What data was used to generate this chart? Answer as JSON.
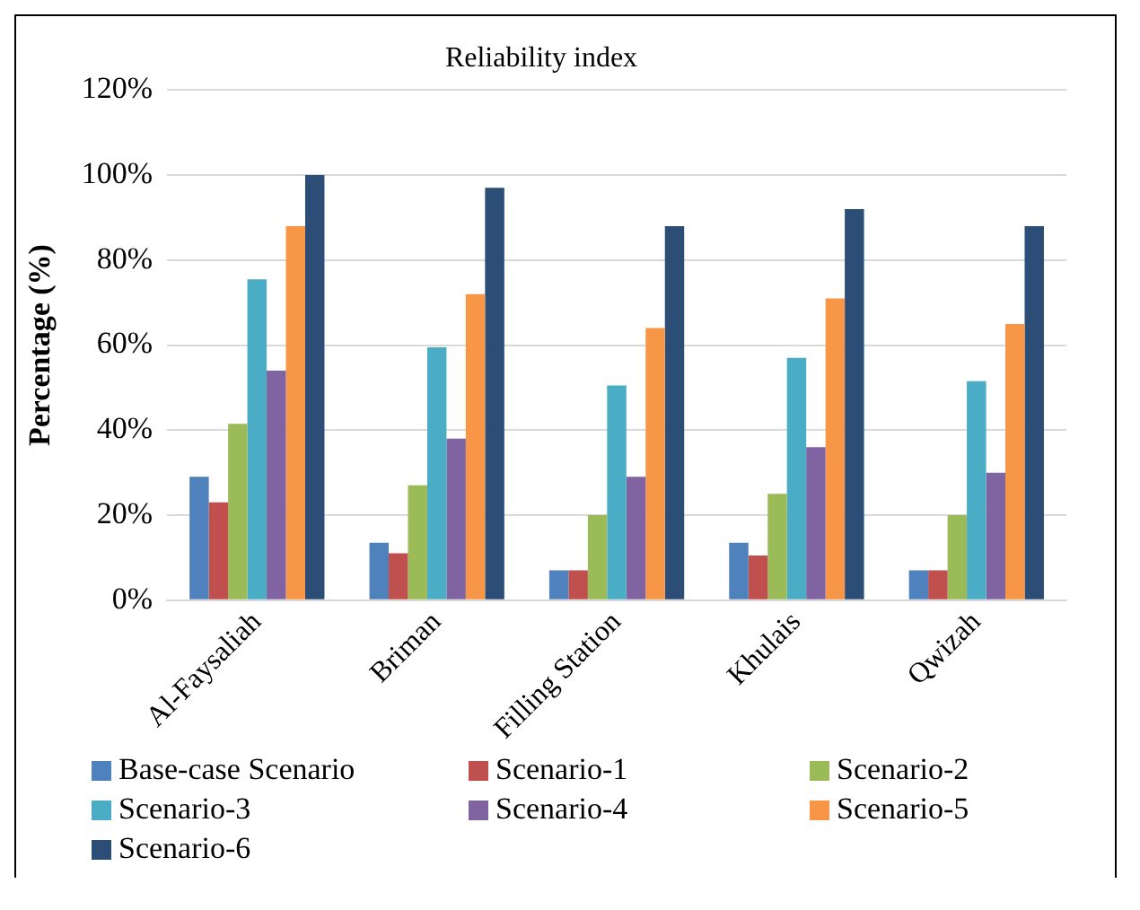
{
  "chart_data": {
    "type": "bar",
    "title": "Reliability index",
    "ylabel": "Percentage (%)",
    "categories": [
      "Al-Faysaliah",
      "Briman",
      "Filling Station",
      "Khulais",
      "Qwizah"
    ],
    "series": [
      {
        "name": "Base-case Scenario",
        "color": "#4f81bd",
        "values": [
          29,
          13.5,
          7,
          13.5,
          7
        ]
      },
      {
        "name": "Scenario-1",
        "color": "#c0504d",
        "values": [
          23,
          11,
          7,
          10.5,
          7
        ]
      },
      {
        "name": "Scenario-2",
        "color": "#9bbb59",
        "values": [
          41.5,
          27,
          20,
          25,
          20
        ]
      },
      {
        "name": "Scenario-3",
        "color": "#4bacc6",
        "values": [
          75.5,
          59.5,
          50.5,
          57,
          51.5
        ]
      },
      {
        "name": "Scenario-4",
        "color": "#8064a2",
        "values": [
          54,
          38,
          29,
          36,
          30
        ]
      },
      {
        "name": "Scenario-5",
        "color": "#f79646",
        "values": [
          88,
          72,
          64,
          71,
          65
        ]
      },
      {
        "name": "Scenario-6",
        "color": "#2c4d75",
        "values": [
          100,
          97,
          88,
          92,
          88
        ]
      }
    ],
    "ylim": [
      0,
      120
    ],
    "yticks": [
      {
        "value": 0,
        "label": "0%"
      },
      {
        "value": 20,
        "label": "20%"
      },
      {
        "value": 40,
        "label": "40%"
      },
      {
        "value": 60,
        "label": "60%"
      },
      {
        "value": 80,
        "label": "80%"
      },
      {
        "value": 100,
        "label": "100%"
      },
      {
        "value": 120,
        "label": "120%"
      }
    ],
    "grid": "y",
    "legend": "bottom"
  }
}
